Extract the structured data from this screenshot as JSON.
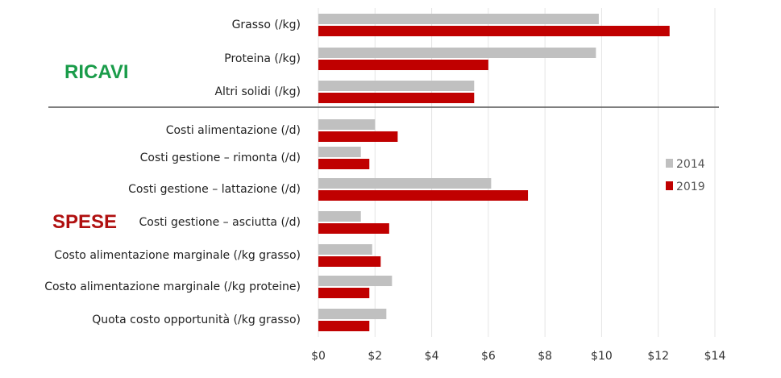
{
  "chart_data": {
    "type": "bar",
    "orientation": "horizontal",
    "categories": [
      "Grasso (/kg)",
      "Proteina (/kg)",
      "Altri solidi (/kg)",
      "Costi alimentazione (/d)",
      "Costi gestione – rimonta (/d)",
      "Costi gestione – lattazione (/d)",
      "Costi gestione – asciutta (/d)",
      "Costo alimentazione marginale (/kg grasso)",
      "Costo alimentazione marginale (/kg proteine)",
      "Quota costo opportunità (/kg grasso)"
    ],
    "series": [
      {
        "name": "2014",
        "color": "#c0c0c0",
        "values": [
          9.9,
          9.8,
          5.5,
          2.0,
          1.5,
          6.1,
          1.5,
          1.9,
          2.6,
          2.4
        ]
      },
      {
        "name": "2019",
        "color": "#c00000",
        "values": [
          12.4,
          6.0,
          5.5,
          2.8,
          1.8,
          7.4,
          2.5,
          2.2,
          1.8,
          1.8
        ]
      }
    ],
    "x_ticks": [
      "$0",
      "$2",
      "$4",
      "$6",
      "$8",
      "$10",
      "$12",
      "$14"
    ],
    "xlim": [
      0,
      14
    ],
    "grid": true,
    "legend_position": "right",
    "groups": [
      {
        "label": "RICAVI",
        "color": "#1a9c4a",
        "categories": [
          0,
          1,
          2
        ]
      },
      {
        "label": "SPESE",
        "color": "#b01010",
        "categories": [
          3,
          4,
          5,
          6,
          7,
          8,
          9
        ]
      }
    ]
  }
}
